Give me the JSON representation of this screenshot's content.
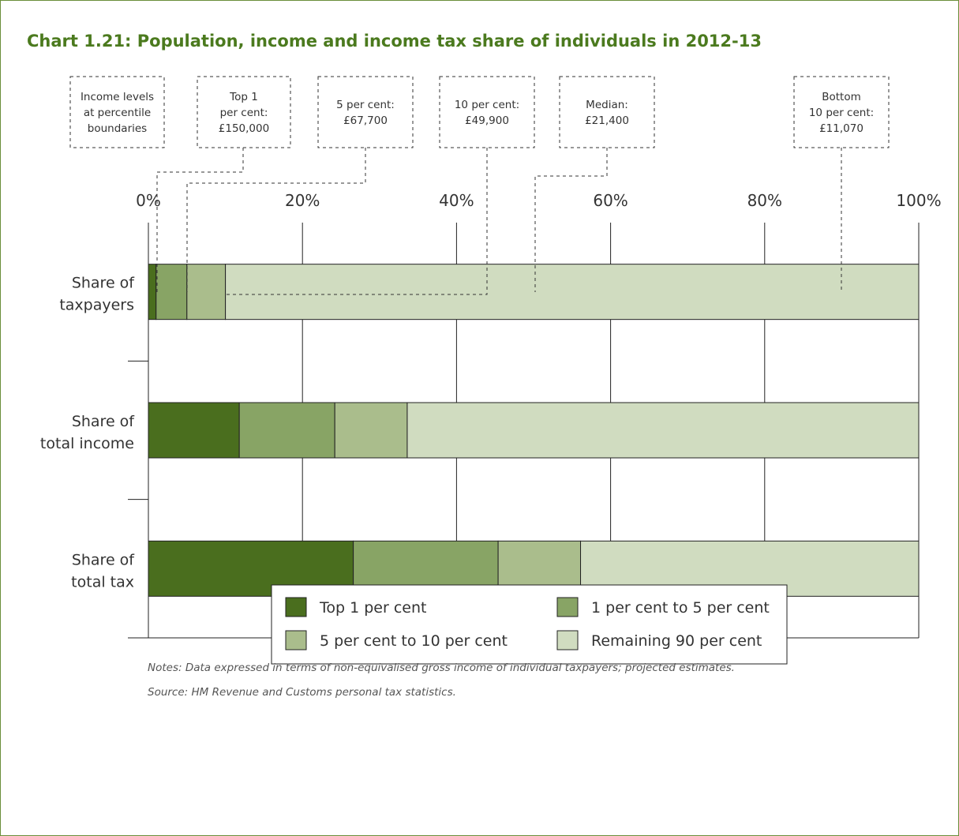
{
  "title": "Chart 1.21: Population, income and income tax share of individuals in 2012-13",
  "notes": "Notes: Data expressed in terms of non-equivalised gross income of individual taxpayers; projected estimates.",
  "source": "Source: HM Revenue and Customs personal tax statistics.",
  "callouts": [
    {
      "lines": [
        "Income levels",
        "at percentile",
        "boundaries"
      ]
    },
    {
      "lines": [
        "Top 1",
        "per cent:",
        "£150,000"
      ],
      "x": 1
    },
    {
      "lines": [
        "5 per cent:",
        "£67,700"
      ],
      "x": 5
    },
    {
      "lines": [
        "10 per cent:",
        "£49,900"
      ],
      "x": 10
    },
    {
      "lines": [
        "Median:",
        "£21,400"
      ],
      "x": 50
    },
    {
      "lines": [
        "Bottom",
        "10 per cent:",
        "£11,070"
      ],
      "x": 90
    }
  ],
  "chart_data": {
    "type": "bar",
    "orientation": "horizontal",
    "stacked": true,
    "categories": [
      [
        "Share of",
        "taxpayers"
      ],
      [
        "Share of",
        "total income"
      ],
      [
        "Share of",
        "total tax"
      ]
    ],
    "series": [
      {
        "name": "Top 1 per cent",
        "color": "#4a6e1e",
        "values": [
          1,
          11.8,
          26.6
        ]
      },
      {
        "name": "1 per cent to 5 per cent",
        "color": "#88a465",
        "values": [
          4,
          12.4,
          18.8
        ]
      },
      {
        "name": "5 per cent to 10 per cent",
        "color": "#aabd8c",
        "values": [
          5,
          9.4,
          10.7
        ]
      },
      {
        "name": "Remaining 90 per cent",
        "color": "#d0dcc0",
        "values": [
          90,
          66.4,
          43.9
        ]
      }
    ],
    "xlim": [
      0,
      100
    ],
    "xticks": [
      0,
      20,
      40,
      60,
      80,
      100
    ],
    "xtick_labels": [
      "0%",
      "20%",
      "40%",
      "60%",
      "80%",
      "100%"
    ],
    "grid": true,
    "legend_position": "bottom"
  }
}
